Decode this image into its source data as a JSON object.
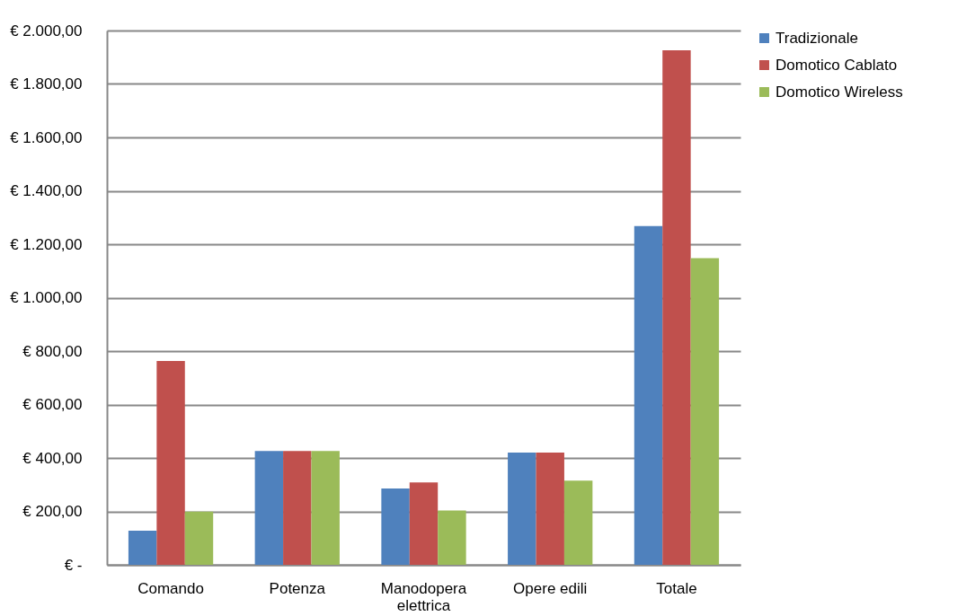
{
  "chart_data": {
    "type": "bar",
    "categories": [
      "Comando",
      "Potenza",
      "Manodopera elettrica",
      "Opere edili",
      "Totale"
    ],
    "series": [
      {
        "name": "Tradizionale",
        "color": "#4f81bd",
        "values": [
          128,
          426,
          286,
          420,
          1268
        ]
      },
      {
        "name": "Domotico Cablato",
        "color": "#c0504d",
        "values": [
          763,
          426,
          308,
          420,
          1926
        ]
      },
      {
        "name": "Domotico Wireless",
        "color": "#9bbb59",
        "values": [
          199,
          426,
          203,
          315,
          1148
        ]
      }
    ],
    "ylim": [
      0,
      2000
    ],
    "yticks": [
      {
        "value": 0,
        "label": "€ -"
      },
      {
        "value": 200,
        "label": "€ 200,00"
      },
      {
        "value": 400,
        "label": "€ 400,00"
      },
      {
        "value": 600,
        "label": "€ 600,00"
      },
      {
        "value": 800,
        "label": "€ 800,00"
      },
      {
        "value": 1000,
        "label": "€ 1.000,00"
      },
      {
        "value": 1200,
        "label": "€ 1.200,00"
      },
      {
        "value": 1400,
        "label": "€ 1.400,00"
      },
      {
        "value": 1600,
        "label": "€ 1.600,00"
      },
      {
        "value": 1800,
        "label": "€ 1.800,00"
      },
      {
        "value": 2000,
        "label": "€ 2.000,00"
      }
    ],
    "grid": "y",
    "legend": "right"
  }
}
